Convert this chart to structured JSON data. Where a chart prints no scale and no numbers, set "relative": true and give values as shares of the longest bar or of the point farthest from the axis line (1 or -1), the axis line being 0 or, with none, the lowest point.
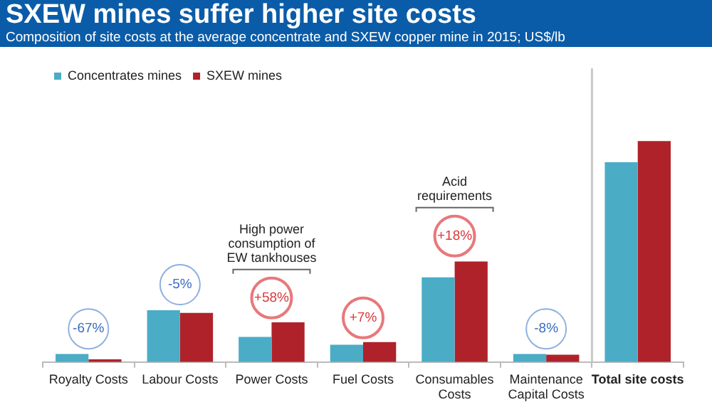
{
  "chart_data": {
    "type": "bar",
    "title": "SXEW mines suffer higher site costs",
    "subtitle": "Composition of site costs at the average concentrate and SXEW copper mine  in 2015; US$/lb",
    "categories": [
      "Royalty Costs",
      "Labour Costs",
      "Power Costs",
      "Fuel Costs",
      "Consumables Costs",
      "Maintenance Capital Costs",
      "Total site costs"
    ],
    "relative": true,
    "legend": "top left",
    "grid": false,
    "series": [
      {
        "name": "Concentrates mines",
        "color": "#4bacc6",
        "values": [
          0.036,
          0.234,
          0.114,
          0.078,
          0.383,
          0.036,
          0.904
        ]
      },
      {
        "name": "SXEW mines",
        "color": "#b0222a",
        "values": [
          0.012,
          0.222,
          0.18,
          0.09,
          0.455,
          0.033,
          1
        ]
      }
    ],
    "annotations": [
      {
        "text": "-67%",
        "x": "Royalty Costs",
        "y": 0.15
      },
      {
        "text": "-5%",
        "x": "Labour Costs",
        "y": 0.35
      },
      {
        "text": "+58%",
        "x": "Power Costs",
        "y": 0.29
      },
      {
        "text": "+7%",
        "x": "Fuel Costs",
        "y": 0.2
      },
      {
        "text": "+18%",
        "x": "Consumables Costs",
        "y": 0.57
      },
      {
        "text": "-8%",
        "x": "Maintenance Capital Costs",
        "y": 0.15
      },
      "High power consumption of EW tankhouses",
      "Acid requirements"
    ]
  }
}
